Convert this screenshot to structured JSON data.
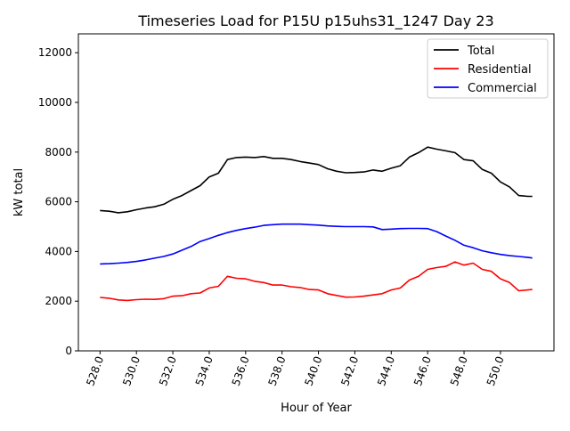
{
  "chart_data": {
    "type": "line",
    "title": "Timeseries Load for P15U p15uhs31_1247  Day 23",
    "xlabel": "Hour of Year",
    "ylabel": "kW total",
    "xlim": [
      526.81,
      552.94
    ],
    "ylim": [
      0,
      12760
    ],
    "xticks": [
      528,
      530,
      532,
      534,
      536,
      538,
      540,
      542,
      544,
      546,
      548,
      550
    ],
    "xtick_labels": [
      "528.0",
      "530.0",
      "532.0",
      "534.0",
      "536.0",
      "538.0",
      "540.0",
      "542.0",
      "544.0",
      "546.0",
      "548.0",
      "550.0"
    ],
    "yticks": [
      0,
      2000,
      4000,
      6000,
      8000,
      10000,
      12000
    ],
    "ytick_labels": [
      "0",
      "2000",
      "4000",
      "6000",
      "8000",
      "10000",
      "12000"
    ],
    "grid": false,
    "legend_position": "top-right",
    "x": [
      528,
      528.5,
      529,
      529.5,
      530,
      530.5,
      531,
      531.5,
      532,
      532.5,
      533,
      533.5,
      534,
      534.5,
      535,
      535.5,
      536,
      536.5,
      537,
      537.5,
      538,
      538.5,
      539,
      539.5,
      540,
      540.5,
      541,
      541.5,
      542,
      542.5,
      543,
      543.5,
      544,
      544.5,
      545,
      545.5,
      546,
      546.5,
      547,
      547.5,
      548,
      548.5,
      549,
      549.5,
      550,
      550.5,
      551,
      551.5,
      551.75
    ],
    "series": [
      {
        "name": "Total",
        "color": "#000000",
        "values": [
          5650,
          5620,
          5560,
          5600,
          5680,
          5750,
          5800,
          5900,
          6100,
          6250,
          6450,
          6650,
          7000,
          7150,
          7700,
          7780,
          7800,
          7780,
          7820,
          7750,
          7750,
          7700,
          7620,
          7560,
          7500,
          7330,
          7230,
          7170,
          7180,
          7200,
          7280,
          7230,
          7350,
          7450,
          7800,
          7980,
          8200,
          8120,
          8050,
          7980,
          7700,
          7650,
          7300,
          7150,
          6800,
          6600,
          6250,
          6220,
          6220
        ]
      },
      {
        "name": "Residential",
        "color": "#ff0000",
        "values": [
          2150,
          2120,
          2050,
          2030,
          2060,
          2080,
          2070,
          2100,
          2200,
          2220,
          2300,
          2330,
          2530,
          2600,
          3000,
          2920,
          2900,
          2800,
          2750,
          2650,
          2650,
          2580,
          2550,
          2470,
          2450,
          2300,
          2230,
          2160,
          2170,
          2200,
          2250,
          2300,
          2450,
          2530,
          2850,
          3000,
          3280,
          3350,
          3400,
          3580,
          3450,
          3530,
          3280,
          3200,
          2900,
          2750,
          2420,
          2450,
          2470
        ]
      },
      {
        "name": "Commercial",
        "color": "#0000ff",
        "values": [
          3500,
          3510,
          3530,
          3560,
          3600,
          3660,
          3730,
          3800,
          3900,
          4050,
          4200,
          4400,
          4520,
          4650,
          4760,
          4850,
          4920,
          4980,
          5050,
          5080,
          5100,
          5100,
          5100,
          5080,
          5060,
          5030,
          5010,
          5000,
          5000,
          5000,
          4990,
          4880,
          4900,
          4920,
          4930,
          4930,
          4920,
          4800,
          4620,
          4450,
          4250,
          4150,
          4030,
          3950,
          3880,
          3830,
          3800,
          3760,
          3740
        ]
      }
    ]
  }
}
